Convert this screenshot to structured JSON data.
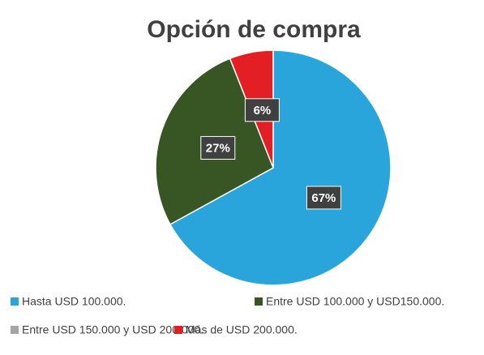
{
  "chart_data": {
    "type": "pie",
    "title": "Opción de compra",
    "categories": [
      "Hasta USD 100.000.",
      "Entre USD 100.000 y USD150.000.",
      "Entre USD 150.000 y USD 200.000.",
      "Más de USD 200.000."
    ],
    "values": [
      67,
      27,
      0,
      6
    ],
    "value_labels": [
      "67%",
      "27%",
      null,
      "6%"
    ],
    "colors": [
      "#2aa5dc",
      "#375623",
      "#a5a5a5",
      "#e31e24"
    ],
    "legend": "bottom"
  }
}
